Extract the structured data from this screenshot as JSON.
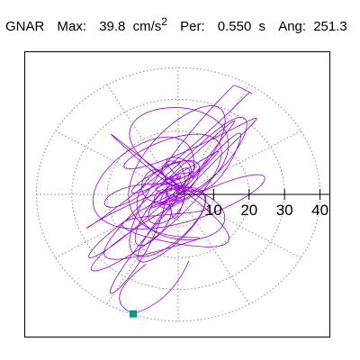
{
  "header": {
    "name": "GNAR",
    "max_label": "Max:",
    "max_value": "39.8",
    "max_unit": "cm/s",
    "max_unit_exp": "2",
    "per_label": "Per:",
    "per_value": "0.550",
    "per_unit": "s",
    "ang_label": "Ang:",
    "ang_value": "251.3"
  },
  "chart_data": {
    "type": "polar-orbit",
    "title": "",
    "radial_ticks": [
      10,
      20,
      30,
      40
    ],
    "radial_tick_labels": [
      "10",
      "20",
      "30",
      "40"
    ],
    "r_max": 40,
    "grid": true,
    "grid_rings": [
      10,
      20,
      30,
      40
    ],
    "grid_spokes_deg": [
      0,
      30,
      60,
      90,
      120,
      150,
      180,
      210,
      240,
      270,
      300,
      330
    ],
    "max_amplitude": 39.8,
    "max_angle_deg": 251.3,
    "end_marker": {
      "x": -12.7,
      "y": -37.7
    },
    "colors": {
      "trace": "#9400d3",
      "marker": "#009a86",
      "grid": "#888888",
      "axis": "#000000"
    }
  }
}
